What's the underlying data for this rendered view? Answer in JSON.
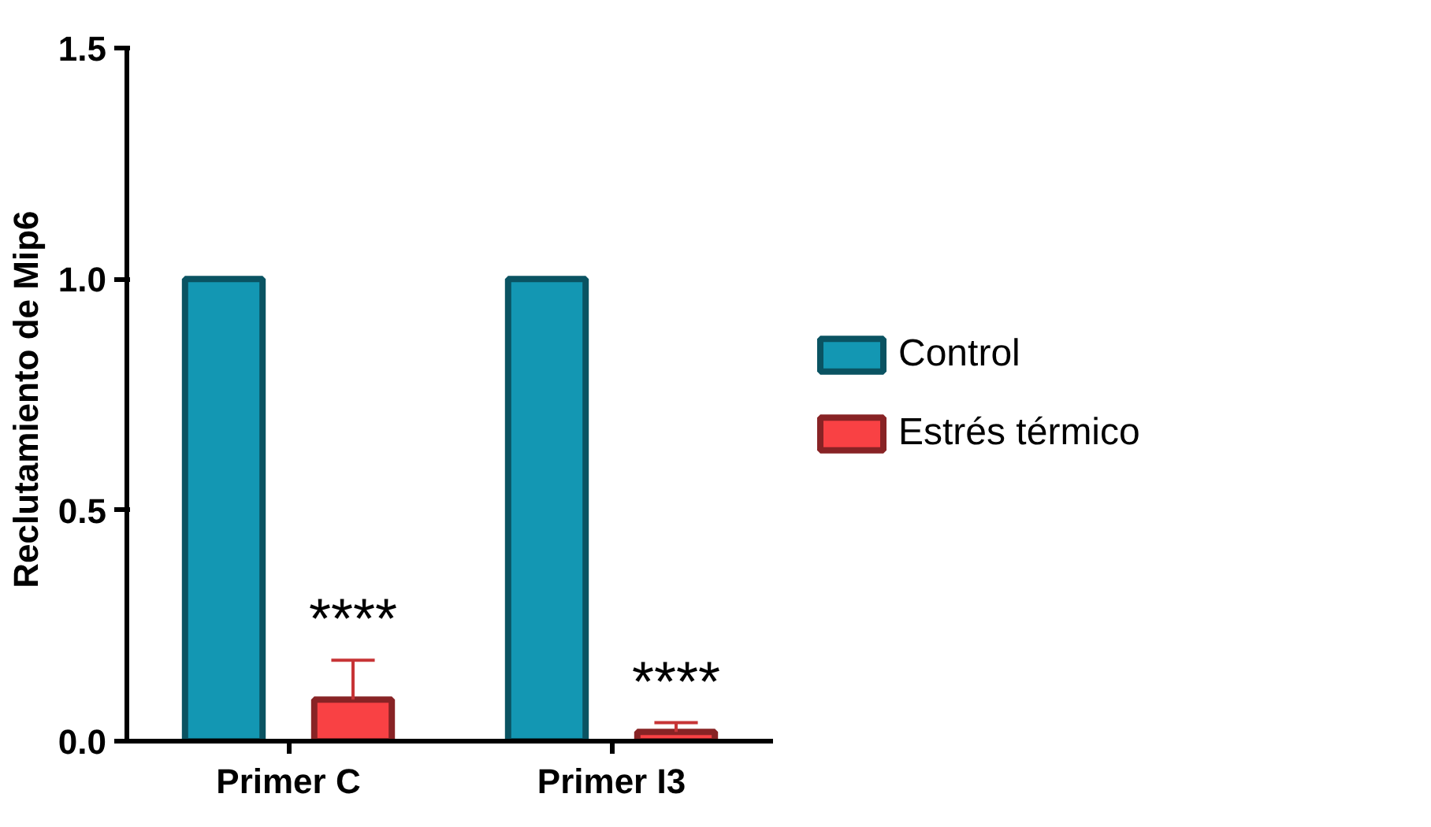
{
  "chart_data": {
    "type": "bar",
    "ylabel": "Reclutamiento de  Mip6",
    "categories": [
      "Primer C",
      "Primer I3"
    ],
    "series": [
      {
        "name": "Control",
        "color": "#1397b3",
        "values": [
          1.0,
          1.0
        ],
        "errors": [
          null,
          null
        ]
      },
      {
        "name": "Estrés térmico",
        "color": "#f94144",
        "values": [
          0.09,
          0.02
        ],
        "errors": [
          [
            0.09,
            0.175
          ],
          [
            0.02,
            0.04
          ]
        ]
      }
    ],
    "ylim": [
      0,
      1.5
    ],
    "yticks": [
      {
        "value": 0,
        "label": "0.0"
      },
      {
        "value": 0.5,
        "label": "0.5"
      },
      {
        "value": 1.0,
        "label": "1.0"
      },
      {
        "value": 1.5,
        "label": "1.5"
      }
    ],
    "annotations": [
      "****",
      "****"
    ],
    "grid": false,
    "legend": "right"
  }
}
